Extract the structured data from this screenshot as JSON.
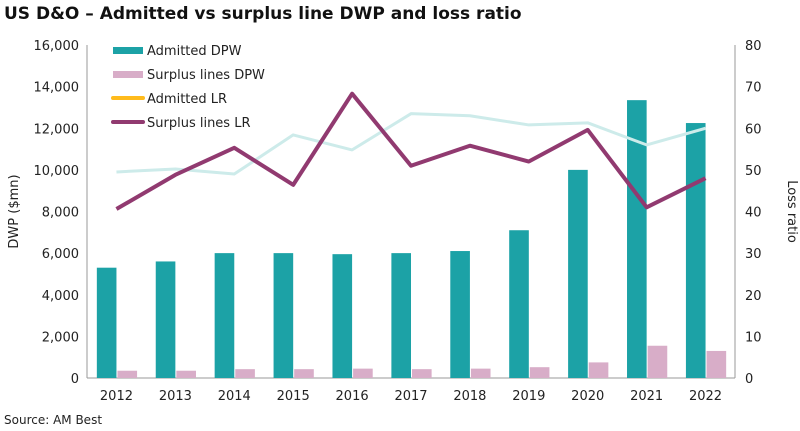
{
  "chart_data": {
    "type": "bar",
    "title": "US D&O – Admitted vs surplus line DWP and loss ratio",
    "source": "Source: AM Best",
    "ylabel": "DWP ($mn)",
    "y2label": "Loss ratio",
    "ylim": [
      0,
      16000
    ],
    "y2lim": [
      0,
      80
    ],
    "yticks": [
      "0",
      "2,000",
      "4,000",
      "6,000",
      "8,000",
      "10,000",
      "12,000",
      "14,000",
      "16,000"
    ],
    "y2ticks": [
      "0",
      "10",
      "20",
      "30",
      "40",
      "50",
      "60",
      "70",
      "80"
    ],
    "categories": [
      "2012",
      "2013",
      "2014",
      "2015",
      "2016",
      "2017",
      "2018",
      "2019",
      "2020",
      "2021",
      "2022"
    ],
    "series": [
      {
        "name": "Admitted DPW",
        "type": "bar",
        "axis": "left",
        "color": "#1ca2a6",
        "values": [
          5300,
          5600,
          6000,
          6000,
          5950,
          6000,
          6100,
          7100,
          10000,
          13350,
          12250
        ]
      },
      {
        "name": "Surplus lines DPW",
        "type": "bar",
        "axis": "left",
        "color": "#d8adc8",
        "values": [
          350,
          350,
          425,
          425,
          450,
          425,
          450,
          520,
          750,
          1550,
          1300
        ]
      },
      {
        "name": "Admitted LR",
        "type": "line",
        "axis": "right",
        "color": "#ffbb1c",
        "line_color": "#cdebea",
        "values": [
          49.5,
          50.2,
          49,
          58.4,
          54.8,
          63.5,
          63,
          60.8,
          61.3,
          56,
          60
        ]
      },
      {
        "name": "Surplus lines LR",
        "type": "line",
        "axis": "right",
        "color": "#913a70",
        "values": [
          40.6,
          48.8,
          55.3,
          46.4,
          68.3,
          51,
          55.8,
          52,
          59.6,
          41,
          48
        ]
      }
    ],
    "legend": "top-left"
  }
}
